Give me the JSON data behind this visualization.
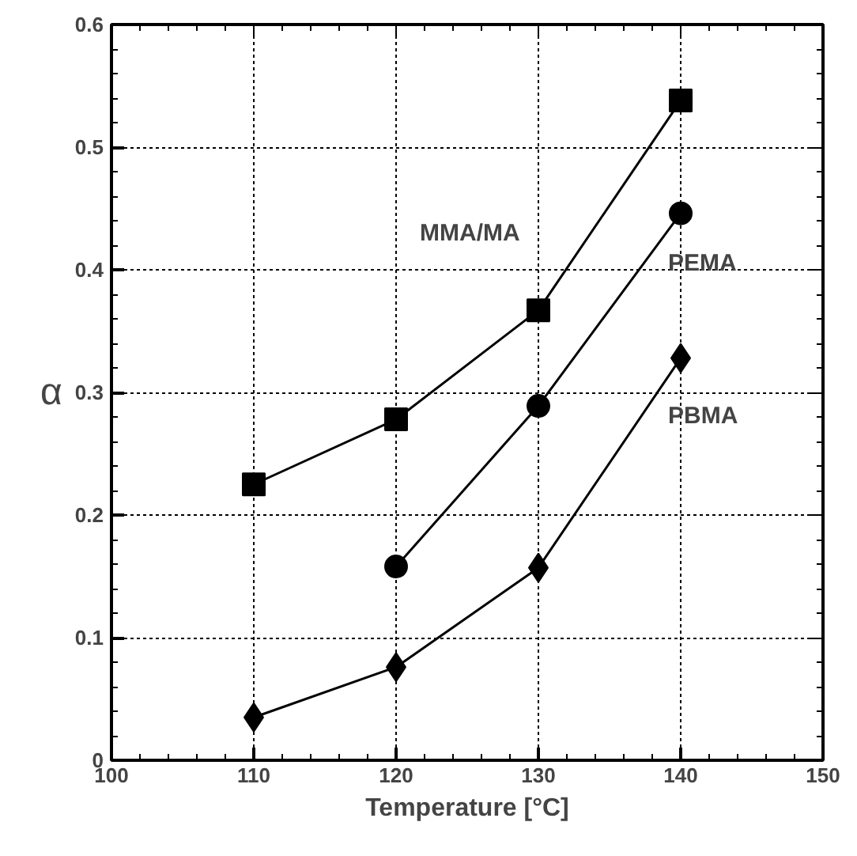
{
  "chart_data": {
    "type": "line",
    "xlabel": "Temperature [°C]",
    "ylabel": "α",
    "xlim": [
      100,
      150
    ],
    "ylim": [
      0,
      0.6
    ],
    "xticks": [
      100,
      110,
      120,
      130,
      140,
      150
    ],
    "yticks": [
      0,
      0.1,
      0.2,
      0.3,
      0.4,
      0.5,
      0.6
    ],
    "grid": true,
    "series": [
      {
        "name": "MMA/MA",
        "color": "#000000",
        "marker": "square",
        "x": [
          110,
          120,
          130,
          140
        ],
        "values": [
          0.225,
          0.278,
          0.367,
          0.538
        ]
      },
      {
        "name": "PEMA",
        "color": "#000000",
        "marker": "circle",
        "x": [
          120,
          130,
          140
        ],
        "values": [
          0.158,
          0.289,
          0.446
        ]
      },
      {
        "name": "PBMA",
        "color": "#000000",
        "marker": "diamond",
        "x": [
          110,
          120,
          130,
          140
        ],
        "values": [
          0.035,
          0.076,
          0.157,
          0.328
        ]
      }
    ]
  }
}
